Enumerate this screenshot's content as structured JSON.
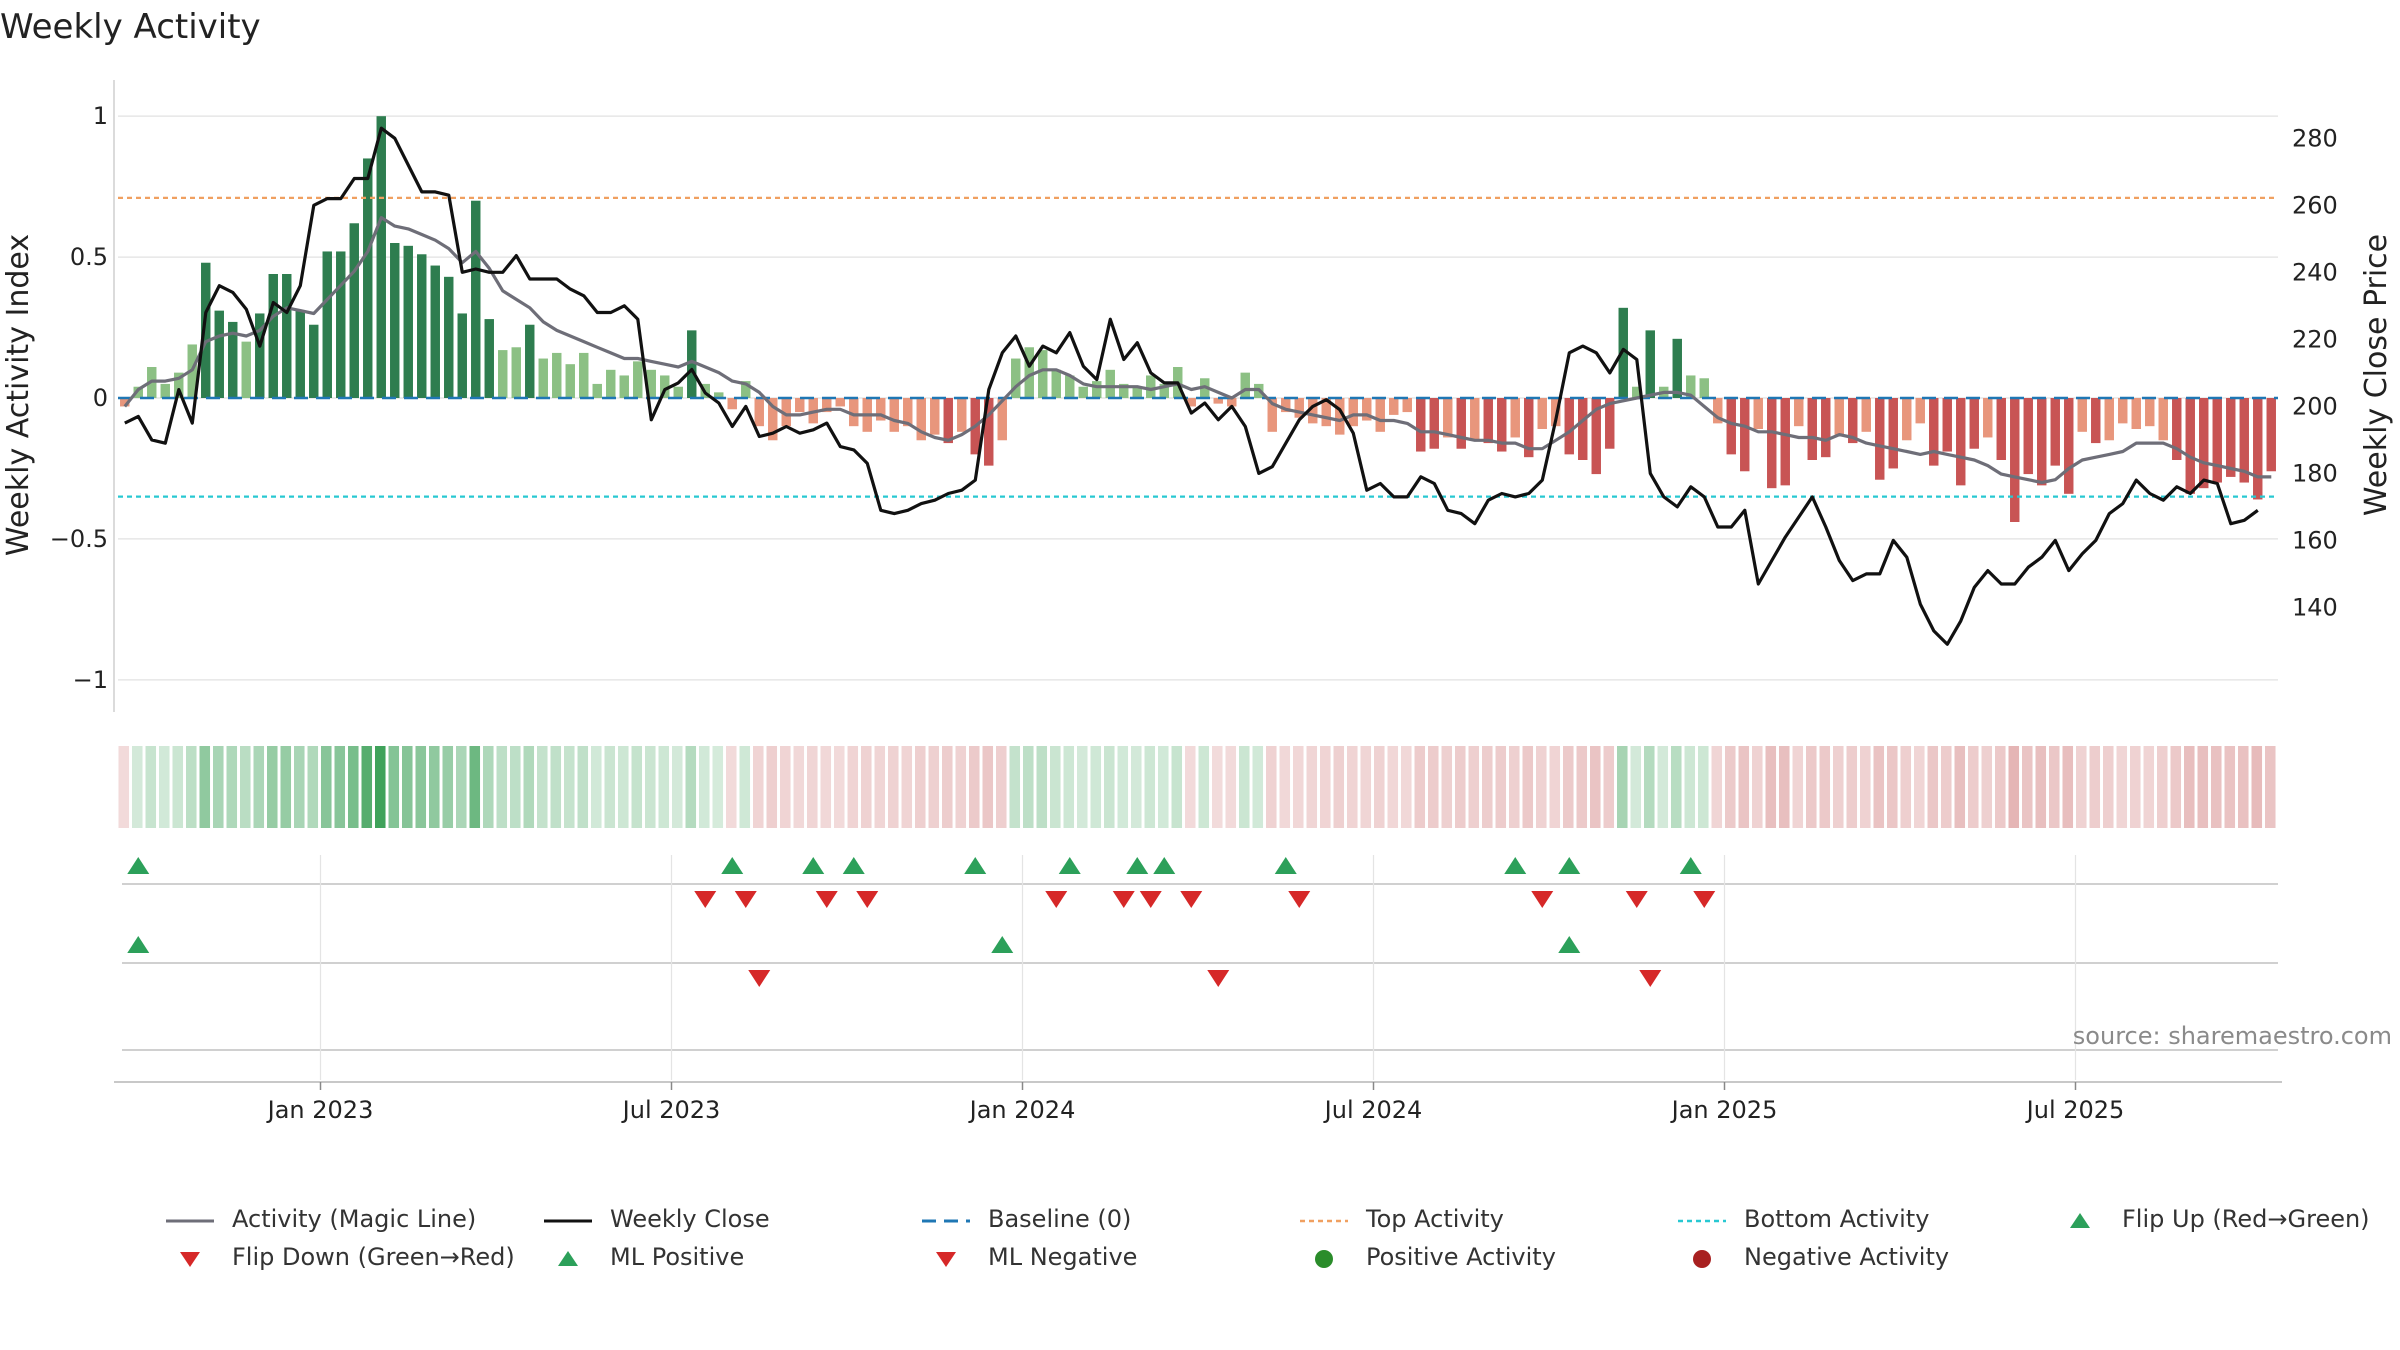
{
  "chart_data": {
    "type": "bar",
    "title": "Weekly Activity",
    "ylabel_left": "Weekly Activity Index",
    "ylabel_right": "Weekly Close Price",
    "left_ylim": [
      -1.1,
      1.1
    ],
    "right_ylim": [
      110,
      295
    ],
    "left_ticks": [
      {
        "v": 1,
        "label": "1"
      },
      {
        "v": 0.5,
        "label": "0.5"
      },
      {
        "v": 0,
        "label": "0"
      },
      {
        "v": -0.5,
        "label": "−0.5"
      },
      {
        "v": -1,
        "label": "−1"
      }
    ],
    "right_ticks": [
      {
        "v": 280,
        "label": "280"
      },
      {
        "v": 260,
        "label": "260"
      },
      {
        "v": 240,
        "label": "240"
      },
      {
        "v": 220,
        "label": "220"
      },
      {
        "v": 200,
        "label": "200"
      },
      {
        "v": 180,
        "label": "180"
      },
      {
        "v": 160,
        "label": "160"
      },
      {
        "v": 140,
        "label": "140"
      }
    ],
    "x_ticks": [
      {
        "week": 15,
        "label": "Jan 2023"
      },
      {
        "week": 41,
        "label": "Jul 2023"
      },
      {
        "week": 67,
        "label": "Jan 2024"
      },
      {
        "week": 93,
        "label": "Jul 2024"
      },
      {
        "week": 119,
        "label": "Jan 2025"
      },
      {
        "week": 145,
        "label": "Jul 2025"
      }
    ],
    "top_activity": 0.71,
    "bottom_activity": -0.35,
    "baseline": 0,
    "activity": [
      -0.03,
      0.04,
      0.11,
      0.05,
      0.09,
      0.19,
      0.48,
      0.31,
      0.27,
      0.2,
      0.3,
      0.44,
      0.44,
      0.31,
      0.26,
      0.52,
      0.52,
      0.62,
      0.85,
      1.0,
      0.55,
      0.54,
      0.51,
      0.47,
      0.43,
      0.3,
      0.7,
      0.28,
      0.17,
      0.18,
      0.26,
      0.14,
      0.16,
      0.12,
      0.16,
      0.05,
      0.1,
      0.08,
      0.13,
      0.1,
      0.08,
      0.04,
      0.24,
      0.05,
      0.02,
      -0.04,
      0.06,
      -0.1,
      -0.15,
      -0.1,
      -0.05,
      -0.09,
      -0.05,
      -0.03,
      -0.1,
      -0.12,
      -0.08,
      -0.12,
      -0.1,
      -0.15,
      -0.13,
      -0.16,
      -0.12,
      -0.2,
      -0.24,
      -0.15,
      0.14,
      0.18,
      0.17,
      0.1,
      0.08,
      0.04,
      0.06,
      0.1,
      0.05,
      0.04,
      0.08,
      0.05,
      0.11,
      -0.03,
      0.07,
      -0.02,
      -0.03,
      0.09,
      0.05,
      -0.12,
      -0.05,
      -0.07,
      -0.09,
      -0.1,
      -0.13,
      -0.1,
      -0.08,
      -0.12,
      -0.06,
      -0.05,
      -0.19,
      -0.18,
      -0.14,
      -0.18,
      -0.15,
      -0.16,
      -0.19,
      -0.14,
      -0.21,
      -0.11,
      -0.1,
      -0.2,
      -0.22,
      -0.27,
      -0.18,
      0.32,
      0.04,
      0.24,
      0.04,
      0.21,
      0.08,
      0.07,
      -0.09,
      -0.2,
      -0.26,
      -0.11,
      -0.32,
      -0.31,
      -0.1,
      -0.22,
      -0.21,
      -0.13,
      -0.16,
      -0.12,
      -0.29,
      -0.25,
      -0.15,
      -0.09,
      -0.24,
      -0.19,
      -0.31,
      -0.18,
      -0.14,
      -0.22,
      -0.44,
      -0.27,
      -0.31,
      -0.24,
      -0.34,
      -0.12,
      -0.16,
      -0.15,
      -0.09,
      -0.11,
      -0.1,
      -0.15,
      -0.22,
      -0.34,
      -0.32,
      -0.3,
      -0.28,
      -0.3,
      -0.36,
      -0.26
    ],
    "magic_line": [
      -0.03,
      0.03,
      0.06,
      0.06,
      0.07,
      0.1,
      0.2,
      0.22,
      0.23,
      0.22,
      0.24,
      0.29,
      0.32,
      0.31,
      0.3,
      0.35,
      0.4,
      0.45,
      0.52,
      0.64,
      0.61,
      0.6,
      0.58,
      0.56,
      0.53,
      0.48,
      0.52,
      0.46,
      0.38,
      0.35,
      0.32,
      0.27,
      0.24,
      0.22,
      0.2,
      0.18,
      0.16,
      0.14,
      0.14,
      0.13,
      0.12,
      0.11,
      0.13,
      0.11,
      0.09,
      0.06,
      0.05,
      0.02,
      -0.03,
      -0.06,
      -0.06,
      -0.05,
      -0.04,
      -0.04,
      -0.06,
      -0.06,
      -0.06,
      -0.08,
      -0.09,
      -0.12,
      -0.14,
      -0.15,
      -0.13,
      -0.1,
      -0.06,
      -0.01,
      0.04,
      0.08,
      0.1,
      0.1,
      0.08,
      0.05,
      0.04,
      0.04,
      0.04,
      0.04,
      0.03,
      0.04,
      0.05,
      0.03,
      0.04,
      0.02,
      0.0,
      0.03,
      0.03,
      -0.02,
      -0.04,
      -0.05,
      -0.06,
      -0.07,
      -0.08,
      -0.06,
      -0.06,
      -0.08,
      -0.08,
      -0.09,
      -0.12,
      -0.12,
      -0.13,
      -0.14,
      -0.15,
      -0.15,
      -0.16,
      -0.16,
      -0.18,
      -0.18,
      -0.15,
      -0.12,
      -0.08,
      -0.04,
      -0.02,
      -0.01,
      0.0,
      0.01,
      0.02,
      0.02,
      0.01,
      -0.03,
      -0.07,
      -0.09,
      -0.1,
      -0.12,
      -0.12,
      -0.13,
      -0.14,
      -0.14,
      -0.15,
      -0.13,
      -0.14,
      -0.16,
      -0.17,
      -0.18,
      -0.19,
      -0.2,
      -0.19,
      -0.2,
      -0.21,
      -0.22,
      -0.24,
      -0.27,
      -0.28,
      -0.29,
      -0.3,
      -0.29,
      -0.25,
      -0.22,
      -0.21,
      -0.2,
      -0.19,
      -0.16,
      -0.16,
      -0.16,
      -0.18,
      -0.21,
      -0.23,
      -0.24,
      -0.25,
      -0.26,
      -0.28,
      -0.28
    ],
    "weekly_close": [
      195,
      197,
      190,
      189,
      205,
      195,
      228,
      236,
      234,
      229,
      218,
      231,
      228,
      236,
      260,
      262,
      262,
      268,
      268,
      283,
      280,
      272,
      264,
      264,
      263,
      240,
      241,
      240,
      240,
      245,
      238,
      238,
      238,
      235,
      233,
      228,
      228,
      230,
      226,
      196,
      205,
      207,
      211,
      204,
      201,
      194,
      200,
      191,
      192,
      194,
      192,
      193,
      195,
      188,
      187,
      183,
      169,
      168,
      169,
      171,
      172,
      174,
      175,
      178,
      205,
      216,
      221,
      212,
      218,
      216,
      222,
      212,
      208,
      226,
      214,
      219,
      210,
      207,
      207,
      198,
      201,
      196,
      200,
      194,
      180,
      182,
      189,
      196,
      200,
      202,
      199,
      192,
      175,
      177,
      173,
      173,
      179,
      177,
      169,
      168,
      165,
      172,
      174,
      173,
      174,
      178,
      196,
      216,
      218,
      216,
      210,
      217,
      214,
      180,
      173,
      170,
      176,
      173,
      164,
      164,
      169,
      147,
      154,
      161,
      167,
      173,
      164,
      154,
      148,
      150,
      150,
      160,
      155,
      141,
      133,
      129,
      136,
      146,
      151,
      147,
      147,
      152,
      155,
      160,
      151,
      156,
      160,
      168,
      171,
      178,
      174,
      172,
      176,
      174,
      178,
      177,
      165,
      166,
      169
    ],
    "flip_up": [
      1,
      45,
      51,
      54,
      63,
      70,
      75,
      77,
      86,
      103,
      107,
      116
    ],
    "flip_down": [
      43,
      46,
      52,
      55,
      69,
      74,
      76,
      79,
      87,
      105,
      112,
      117
    ],
    "ml_positive": [
      1,
      65,
      107
    ],
    "ml_negative": [
      47,
      81,
      113
    ],
    "colors": {
      "pos_strong": "#2e7d4f",
      "pos_light": "#8cc084",
      "neg_strong": "#c85454",
      "neg_light": "#e8967c",
      "magic_line": "#6e6e78",
      "close": "#111111",
      "baseline": "#1f77b4",
      "top_line": "#f0a060",
      "bottom_line": "#28c8d2",
      "marker_green": "#2ca05a",
      "marker_red": "#d62828",
      "dot_green": "#2a8c2a",
      "dot_red": "#a82020"
    }
  },
  "source": "source: sharemaestro.com",
  "legend": [
    {
      "key": "magic",
      "label": "Activity (Magic Line)"
    },
    {
      "key": "close",
      "label": "Weekly Close"
    },
    {
      "key": "baseline",
      "label": "Baseline (0)"
    },
    {
      "key": "top",
      "label": "Top Activity"
    },
    {
      "key": "bottom",
      "label": "Bottom Activity"
    },
    {
      "key": "flipup",
      "label": "Flip Up (Red→Green)"
    },
    {
      "key": "flipdown",
      "label": "Flip Down (Green→Red)"
    },
    {
      "key": "mlpos",
      "label": "ML Positive"
    },
    {
      "key": "mlneg",
      "label": "ML Negative"
    },
    {
      "key": "posact",
      "label": "Positive Activity"
    },
    {
      "key": "negact",
      "label": "Negative Activity"
    }
  ]
}
